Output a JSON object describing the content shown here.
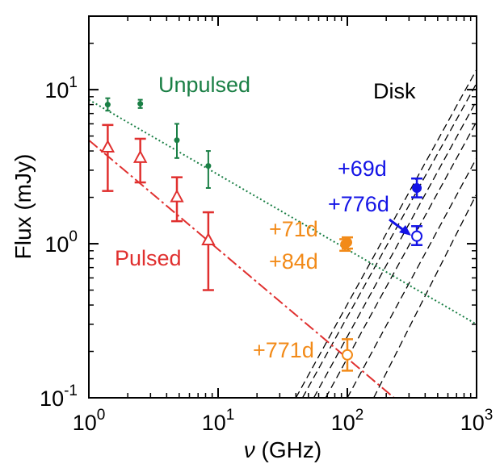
{
  "chart_data": {
    "type": "scatter",
    "xlabel_symbol": "ν",
    "xlabel_unit": " (GHz)",
    "ylabel": "Flux (mJy)",
    "x_scale": "log",
    "y_scale": "log",
    "xlim": [
      1,
      1000
    ],
    "ylim": [
      0.1,
      30
    ],
    "x_ticks": [
      {
        "value": 1,
        "base": "10",
        "exp": "0"
      },
      {
        "value": 10,
        "base": "10",
        "exp": "1"
      },
      {
        "value": 100,
        "base": "10",
        "exp": "2"
      },
      {
        "value": 1000,
        "base": "10",
        "exp": "3"
      }
    ],
    "y_ticks": [
      {
        "value": 0.1,
        "base": "10",
        "exp": "-1"
      },
      {
        "value": 1,
        "base": "10",
        "exp": "0"
      },
      {
        "value": 10,
        "base": "10",
        "exp": "1"
      }
    ],
    "colors": {
      "green": "#1a7f45",
      "red": "#e0302f",
      "orange": "#f28a18",
      "blue": "#1414e6",
      "black": "#000000"
    },
    "series": [
      {
        "name": "Unpulsed",
        "color_key": "green",
        "marker": "dot",
        "points": [
          {
            "x": 1.4,
            "y": 8.0,
            "ylo": 7.3,
            "yhi": 8.8
          },
          {
            "x": 2.5,
            "y": 8.1,
            "ylo": 7.6,
            "yhi": 8.6
          },
          {
            "x": 4.8,
            "y": 4.7,
            "ylo": 3.6,
            "yhi": 6.0
          },
          {
            "x": 8.4,
            "y": 3.2,
            "ylo": 2.3,
            "yhi": 4.0
          }
        ],
        "fit": {
          "style": "dotted",
          "x0": 1,
          "y0": 8.6,
          "x1": 1000,
          "y1": 0.3
        }
      },
      {
        "name": "Pulsed",
        "color_key": "red",
        "marker": "triangle",
        "points": [
          {
            "x": 1.4,
            "y": 4.2,
            "ylo": 2.2,
            "yhi": 5.9
          },
          {
            "x": 2.5,
            "y": 3.6,
            "ylo": 2.5,
            "yhi": 4.8
          },
          {
            "x": 4.8,
            "y": 2.0,
            "ylo": 1.4,
            "yhi": 2.7
          },
          {
            "x": 8.4,
            "y": 1.05,
            "ylo": 0.5,
            "yhi": 1.6
          }
        ],
        "fit": {
          "style": "dashdot",
          "x0": 1,
          "y0": 4.7,
          "x1": 230,
          "y1": 0.1
        }
      },
      {
        "name": "+71d",
        "color_key": "orange",
        "marker": "filled-circle",
        "points": [
          {
            "x": 100,
            "y": 1.02,
            "ylo": 0.93,
            "yhi": 1.1
          }
        ]
      },
      {
        "name": "+84d",
        "color_key": "orange",
        "marker": "filled-circle",
        "points": [
          {
            "x": 96,
            "y": 0.99,
            "ylo": 0.9,
            "yhi": 1.07
          }
        ]
      },
      {
        "name": "+771d",
        "color_key": "orange",
        "marker": "open-circle",
        "points": [
          {
            "x": 100,
            "y": 0.19,
            "ylo": 0.15,
            "yhi": 0.24
          }
        ]
      },
      {
        "name": "+69d",
        "color_key": "blue",
        "marker": "filled-circle",
        "points": [
          {
            "x": 345,
            "y": 2.3,
            "ylo": 2.0,
            "yhi": 2.65
          }
        ]
      },
      {
        "name": "+776d",
        "color_key": "blue",
        "marker": "open-circle",
        "points": [
          {
            "x": 345,
            "y": 1.12,
            "ylo": 0.98,
            "yhi": 1.3
          }
        ]
      }
    ],
    "disk_models": [
      [
        [
          40,
          0.1
        ],
        [
          1000,
          13.5
        ]
      ],
      [
        [
          45,
          0.1
        ],
        [
          1000,
          11.0
        ]
      ],
      [
        [
          55,
          0.1
        ],
        [
          1000,
          8.5
        ]
      ],
      [
        [
          68,
          0.1
        ],
        [
          1000,
          6.2
        ]
      ],
      [
        [
          100,
          0.1
        ],
        [
          1000,
          3.6
        ]
      ],
      [
        [
          160,
          0.1
        ],
        [
          1000,
          2.1
        ]
      ]
    ],
    "annotations": {
      "unpulsed": "Unpulsed",
      "pulsed": "Pulsed",
      "disk": "Disk",
      "d69": "+69d",
      "d776": "+776d",
      "d71": "+71d",
      "d84": "+84d",
      "d771": "+771d"
    },
    "grid": false,
    "legend": "none"
  }
}
